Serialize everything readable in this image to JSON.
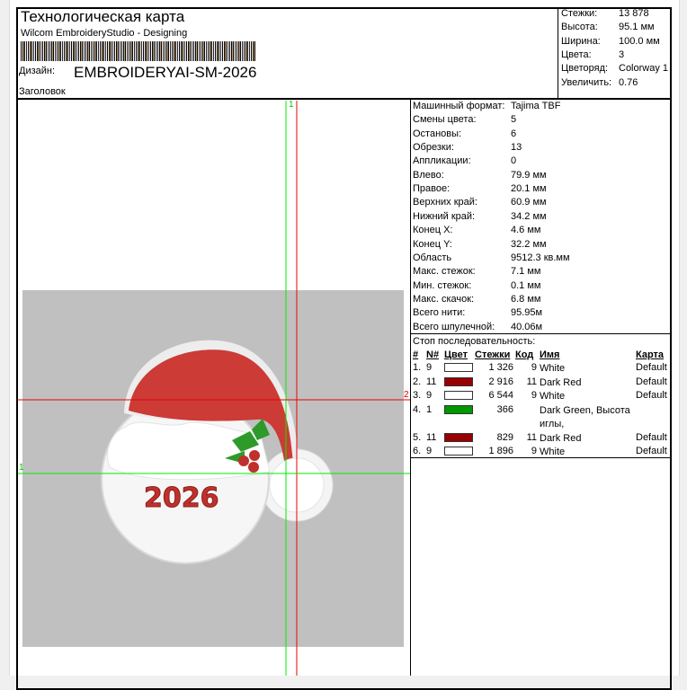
{
  "header": {
    "title": "Технологическая карта",
    "subtitle": "Wilcom EmbroideryStudio - Designing",
    "design_label": "Дизайн:",
    "design_name": "EMBROIDERYAI-SM-2026",
    "heading_label": "Заголовок"
  },
  "summary": [
    {
      "k": "Стежки:",
      "v": "13 878"
    },
    {
      "k": "Высота:",
      "v": "95.1 мм"
    },
    {
      "k": "Ширина:",
      "v": "100.0 мм"
    },
    {
      "k": "Цвета:",
      "v": "3"
    },
    {
      "k": "Цветоряд:",
      "v": "Colorway 1"
    },
    {
      "k": "Увеличить:",
      "v": "0.76"
    }
  ],
  "details": [
    {
      "k": "Машинный формат:",
      "v": "Tajima TBF"
    },
    {
      "k": "Смены цвета:",
      "v": "5"
    },
    {
      "k": "Остановы:",
      "v": "6"
    },
    {
      "k": "Обрезки:",
      "v": "13"
    },
    {
      "k": "Аппликации:",
      "v": "0"
    },
    {
      "k": "Влево:",
      "v": "79.9 мм"
    },
    {
      "k": "Правое:",
      "v": "20.1 мм"
    },
    {
      "k": "Верхних край:",
      "v": "60.9 мм"
    },
    {
      "k": "Нижний край:",
      "v": "34.2 мм"
    },
    {
      "k": "Конец X:",
      "v": "4.6 мм"
    },
    {
      "k": "Конец Y:",
      "v": "32.2 мм"
    },
    {
      "k": "Область",
      "v": "9512.3 кв.мм"
    },
    {
      "k": "Макс. стежок:",
      "v": "7.1 мм"
    },
    {
      "k": "Мин. стежок:",
      "v": "0.1 мм"
    },
    {
      "k": "Макс. скачок:",
      "v": "6.8 мм"
    },
    {
      "k": "Всего нити:",
      "v": "95.95м"
    },
    {
      "k": "Всего шпулечной:",
      "v": "40.06м"
    }
  ],
  "stop_sequence": {
    "title": "Стоп последовательность:",
    "columns": [
      "#",
      "N#",
      "Цвет",
      "Стежки",
      "Код",
      "Имя",
      "Карта"
    ],
    "rows": [
      {
        "n": "1.",
        "needle": "9",
        "color": "#ffffff",
        "stitches": "1 326",
        "code": "9",
        "name": "White",
        "chart": "Default"
      },
      {
        "n": "2.",
        "needle": "11",
        "color": "#990000",
        "stitches": "2 916",
        "code": "11",
        "name": "Dark Red",
        "chart": "Default"
      },
      {
        "n": "3.",
        "needle": "9",
        "color": "#ffffff",
        "stitches": "6 544",
        "code": "9",
        "name": "White",
        "chart": "Default"
      },
      {
        "n": "4.",
        "needle": "1",
        "color": "#009900",
        "stitches": "366",
        "code": "",
        "name": "Dark Green, Высота иглы,",
        "chart": ""
      },
      {
        "n": "5.",
        "needle": "11",
        "color": "#990000",
        "stitches": "829",
        "code": "11",
        "name": "Dark Red",
        "chart": "Default"
      },
      {
        "n": "6.",
        "needle": "9",
        "color": "#ffffff",
        "stitches": "1 896",
        "code": "9",
        "name": "White",
        "chart": "Default"
      }
    ]
  },
  "preview": {
    "guide_labels": [
      "1",
      "2",
      "1"
    ],
    "guide_colors": {
      "green": "#00ee00",
      "red": "#ee0000"
    }
  }
}
